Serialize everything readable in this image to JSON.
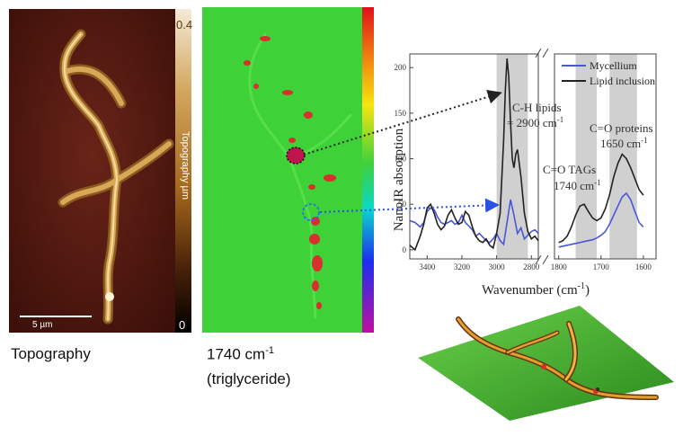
{
  "topography_panel": {
    "colorbar_max": "0.4",
    "colorbar_min": "0",
    "colorbar_label": "Topography µm",
    "scalebar_label": "5 µm",
    "caption": "Topography"
  },
  "ir_map_panel": {
    "caption_line1_prefix": "1740 cm",
    "caption_line1_sup": "-1",
    "caption_line2": "(triglyceride)"
  },
  "chart_data": {
    "type": "line",
    "xlabel": "Wavenumber (cm",
    "xlabel_sup": "-1",
    "xlabel_suffix": ")",
    "ylabel": "NanoIR absorption",
    "yticks": [
      0,
      50,
      100,
      150,
      200
    ],
    "ylim": [
      -10,
      215
    ],
    "xticks_left": [
      3400,
      3200,
      3000,
      2800
    ],
    "xlim_left": [
      3500,
      2760
    ],
    "xticks_right": [
      1800,
      1700,
      1600
    ],
    "xlim_right": [
      1810,
      1570
    ],
    "shaded_bands": [
      [
        3000,
        2820
      ],
      [
        1760,
        1710
      ],
      [
        1680,
        1615
      ]
    ],
    "legend": [
      "Mycellium",
      "Lipid inclusion"
    ],
    "legend_position": "top-right",
    "series": [
      {
        "name": "Mycellium",
        "color": "#4a56d8",
        "left": {
          "x": [
            3500,
            3470,
            3440,
            3420,
            3400,
            3380,
            3360,
            3340,
            3320,
            3300,
            3280,
            3260,
            3240,
            3220,
            3200,
            3180,
            3160,
            3140,
            3120,
            3100,
            3080,
            3060,
            3040,
            3020,
            3000,
            2980,
            2960,
            2940,
            2920,
            2900,
            2880,
            2860,
            2840,
            2820,
            2800,
            2780,
            2760
          ],
          "y": [
            32,
            30,
            25,
            30,
            42,
            46,
            44,
            36,
            30,
            28,
            30,
            32,
            28,
            30,
            38,
            30,
            26,
            22,
            15,
            18,
            14,
            10,
            8,
            12,
            18,
            10,
            6,
            30,
            55,
            38,
            18,
            24,
            12,
            16,
            20,
            22,
            18
          ]
        },
        "right": {
          "x": [
            1800,
            1790,
            1780,
            1770,
            1760,
            1750,
            1740,
            1730,
            1720,
            1710,
            1700,
            1690,
            1680,
            1670,
            1660,
            1650,
            1640,
            1630,
            1620,
            1610,
            1600
          ],
          "y": [
            3,
            4,
            5,
            6,
            7,
            8,
            9,
            10,
            11,
            13,
            16,
            20,
            28,
            38,
            48,
            58,
            62,
            55,
            42,
            30,
            25
          ]
        }
      },
      {
        "name": "Lipid inclusion",
        "color": "#222222",
        "left": {
          "x": [
            3500,
            3470,
            3440,
            3420,
            3400,
            3380,
            3360,
            3340,
            3320,
            3300,
            3280,
            3260,
            3240,
            3220,
            3200,
            3180,
            3160,
            3140,
            3120,
            3100,
            3080,
            3060,
            3040,
            3020,
            3000,
            2980,
            2960,
            2950,
            2940,
            2930,
            2920,
            2910,
            2900,
            2890,
            2880,
            2860,
            2840,
            2820,
            2800,
            2780,
            2760
          ],
          "y": [
            5,
            0,
            15,
            28,
            46,
            50,
            40,
            28,
            22,
            26,
            38,
            44,
            35,
            28,
            30,
            42,
            38,
            25,
            15,
            10,
            8,
            12,
            5,
            2,
            18,
            40,
            120,
            175,
            210,
            190,
            140,
            100,
            90,
            105,
            110,
            80,
            40,
            20,
            12,
            15,
            10
          ]
        },
        "right": {
          "x": [
            1800,
            1790,
            1780,
            1770,
            1760,
            1750,
            1740,
            1730,
            1720,
            1710,
            1700,
            1690,
            1680,
            1670,
            1660,
            1650,
            1640,
            1630,
            1620,
            1610,
            1600
          ],
          "y": [
            8,
            10,
            15,
            25,
            38,
            48,
            50,
            42,
            35,
            32,
            35,
            45,
            60,
            80,
            95,
            105,
            100,
            90,
            78,
            66,
            60
          ]
        }
      }
    ],
    "annotations": [
      {
        "text": "C-H lipids",
        "line2": "= 2900 cm",
        "sup": "-1"
      },
      {
        "text": "C=O proteins",
        "line2": "1650 cm",
        "sup": "-1"
      },
      {
        "text": "C=O TAGs",
        "line2": "1740 cm",
        "sup": "-1"
      }
    ]
  }
}
